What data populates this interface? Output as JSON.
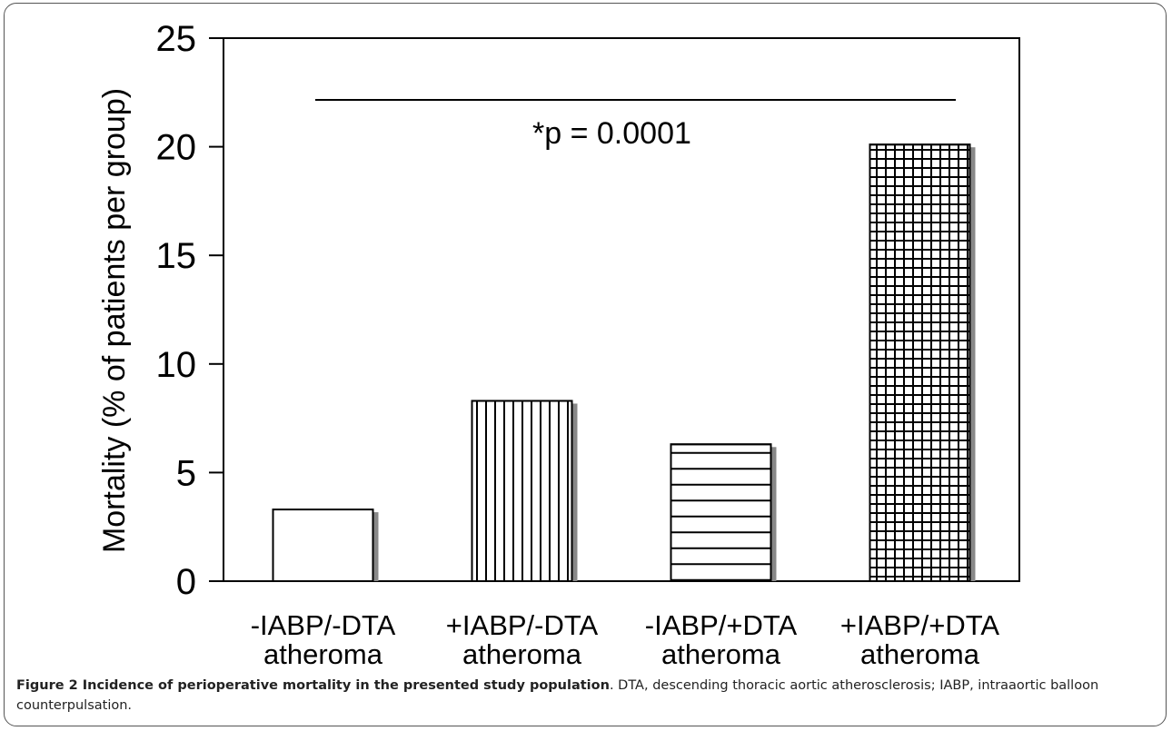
{
  "caption": {
    "bold": "Figure 2 Incidence of perioperative mortality in the presented study population",
    "text": ". DTA, descending thoracic aortic atherosclerosis; IABP, intraaortic balloon counterpulsation."
  },
  "chart_data": {
    "type": "bar",
    "title": "",
    "xlabel": "",
    "ylabel": "Mortality (% of patients per group)",
    "ylim": [
      0,
      25
    ],
    "yticks": [
      "0",
      "5",
      "10",
      "15",
      "20",
      "25"
    ],
    "categories": [
      [
        "-IABP/-DTA",
        "atheroma"
      ],
      [
        "+IABP/-DTA",
        "atheroma"
      ],
      [
        "-IABP/+DTA",
        "atheroma"
      ],
      [
        "+IABP/+DTA",
        "atheroma"
      ]
    ],
    "values": [
      3.3,
      8.3,
      6.3,
      20.1
    ],
    "patterns": [
      "none",
      "vertical",
      "horizontal",
      "grid"
    ],
    "annotation": "*p = 0.0001",
    "grid": false,
    "legend": "none",
    "colors": {
      "bar_fill": "#ffffff",
      "bar_stroke": "#000000",
      "shadow": "#888888"
    }
  }
}
